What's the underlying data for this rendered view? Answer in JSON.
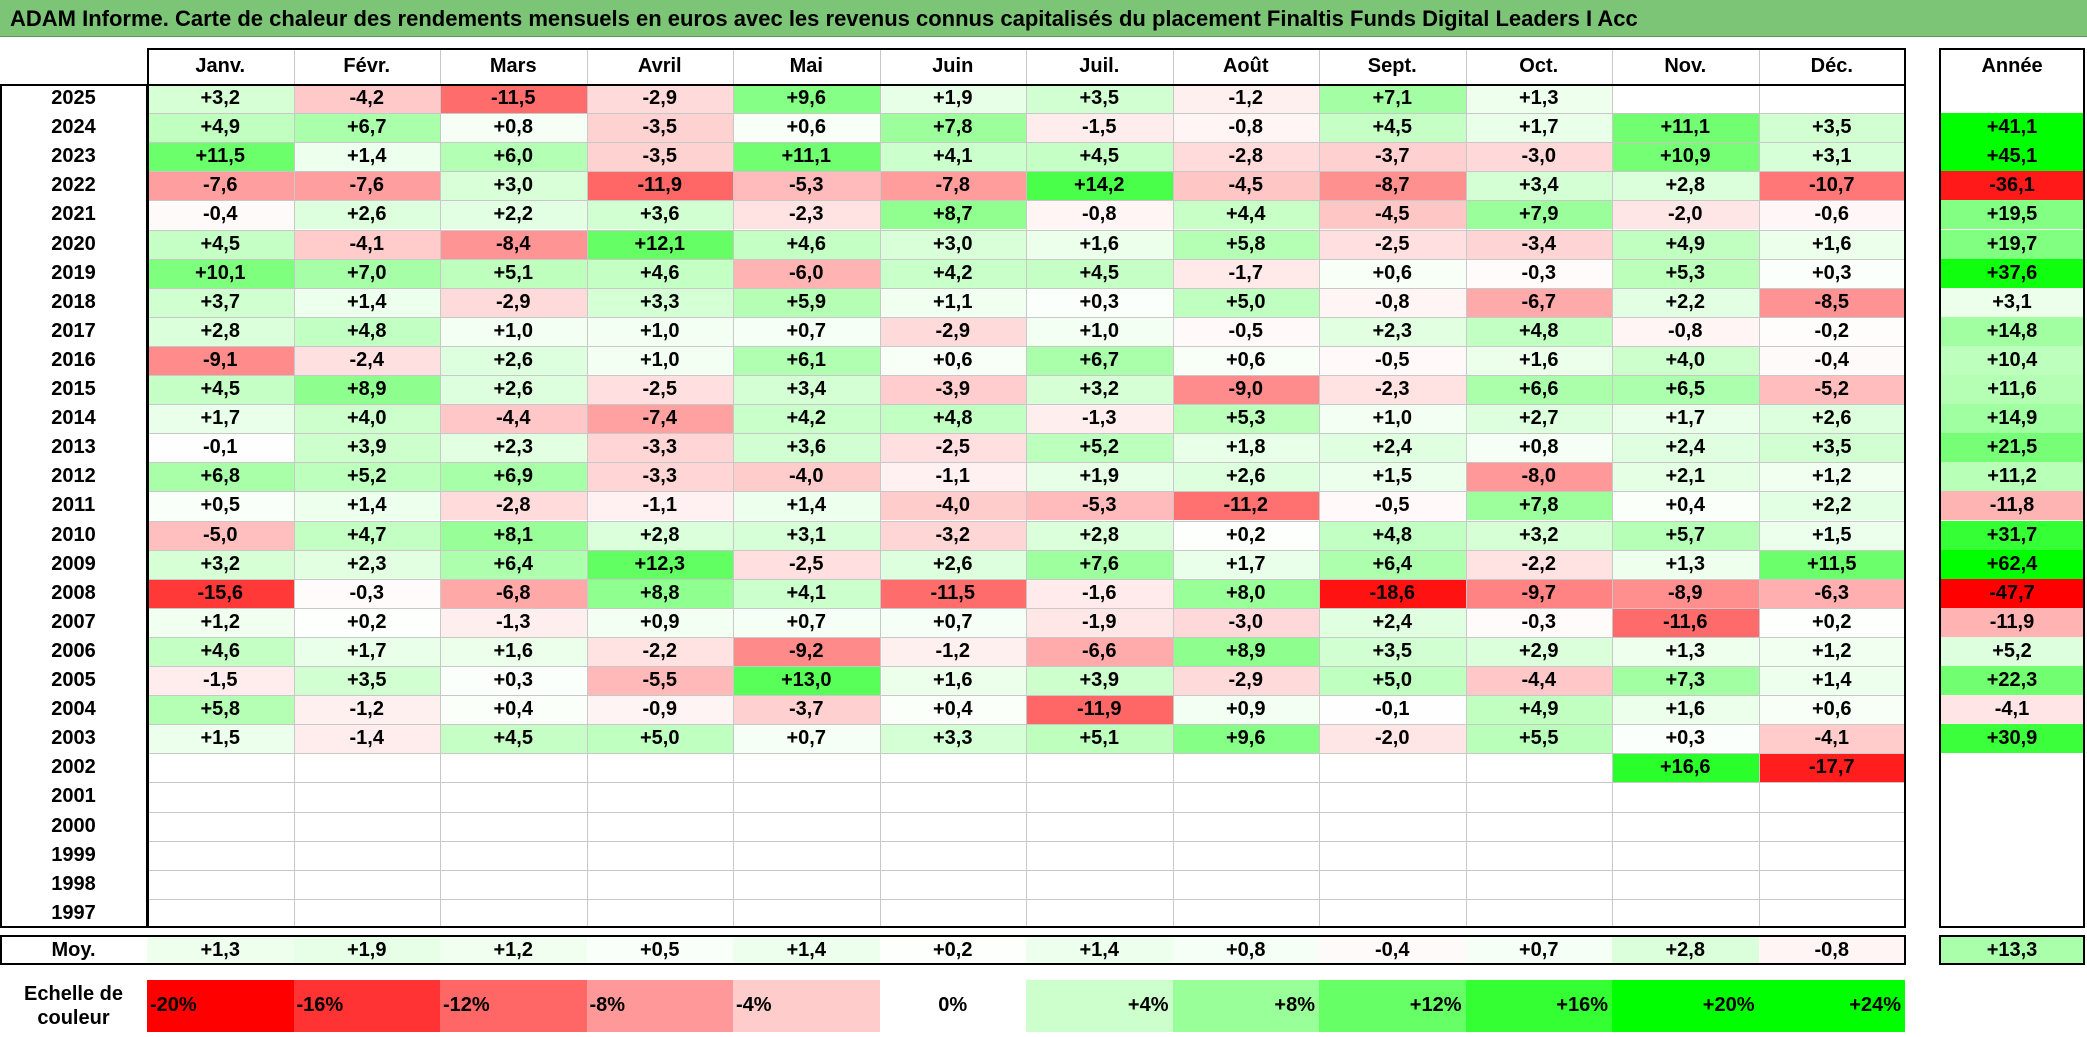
{
  "title": "ADAM Informe. Carte de chaleur des rendements mensuels en euros avec les revenus connus capitalisés du placement Finaltis Funds Digital Leaders I Acc",
  "months": [
    "Janv.",
    "Févr.",
    "Mars",
    "Avril",
    "Mai",
    "Juin",
    "Juil.",
    "Août",
    "Sept.",
    "Oct.",
    "Nov.",
    "Déc."
  ],
  "year_header": "Année",
  "avg_label": "Moy.",
  "scale_label": "Echelle de couleur",
  "colors": {
    "negative": "#ff0000",
    "neutral": "#ffffff",
    "positive": "#00ff00",
    "title_bg": "#7cc576"
  },
  "chart_data": {
    "type": "heatmap",
    "title": "ADAM Informe. Carte de chaleur des rendements mensuels en euros avec les revenus connus capitalisés du placement Finaltis Funds Digital Leaders I Acc",
    "columns": [
      "Janv.",
      "Févr.",
      "Mars",
      "Avril",
      "Mai",
      "Juin",
      "Juil.",
      "Août",
      "Sept.",
      "Oct.",
      "Nov.",
      "Déc.",
      "Année"
    ],
    "rows": [
      {
        "year": "2025",
        "values": [
          "+3,2",
          "-4,2",
          "-11,5",
          "-2,9",
          "+9,6",
          "+1,9",
          "+3,5",
          "-1,2",
          "+7,1",
          "+1,3",
          "",
          ""
        ],
        "annual": ""
      },
      {
        "year": "2024",
        "values": [
          "+4,9",
          "+6,7",
          "+0,8",
          "-3,5",
          "+0,6",
          "+7,8",
          "-1,5",
          "-0,8",
          "+4,5",
          "+1,7",
          "+11,1",
          "+3,5"
        ],
        "annual": "+41,1"
      },
      {
        "year": "2023",
        "values": [
          "+11,5",
          "+1,4",
          "+6,0",
          "-3,5",
          "+11,1",
          "+4,1",
          "+4,5",
          "-2,8",
          "-3,7",
          "-3,0",
          "+10,9",
          "+3,1"
        ],
        "annual": "+45,1"
      },
      {
        "year": "2022",
        "values": [
          "-7,6",
          "-7,6",
          "+3,0",
          "-11,9",
          "-5,3",
          "-7,8",
          "+14,2",
          "-4,5",
          "-8,7",
          "+3,4",
          "+2,8",
          "-10,7"
        ],
        "annual": "-36,1"
      },
      {
        "year": "2021",
        "values": [
          "-0,4",
          "+2,6",
          "+2,2",
          "+3,6",
          "-2,3",
          "+8,7",
          "-0,8",
          "+4,4",
          "-4,5",
          "+7,9",
          "-2,0",
          "-0,6"
        ],
        "annual": "+19,5"
      },
      {
        "year": "2020",
        "values": [
          "+4,5",
          "-4,1",
          "-8,4",
          "+12,1",
          "+4,6",
          "+3,0",
          "+1,6",
          "+5,8",
          "-2,5",
          "-3,4",
          "+4,9",
          "+1,6"
        ],
        "annual": "+19,7"
      },
      {
        "year": "2019",
        "values": [
          "+10,1",
          "+7,0",
          "+5,1",
          "+4,6",
          "-6,0",
          "+4,2",
          "+4,5",
          "-1,7",
          "+0,6",
          "-0,3",
          "+5,3",
          "+0,3"
        ],
        "annual": "+37,6"
      },
      {
        "year": "2018",
        "values": [
          "+3,7",
          "+1,4",
          "-2,9",
          "+3,3",
          "+5,9",
          "+1,1",
          "+0,3",
          "+5,0",
          "-0,8",
          "-6,7",
          "+2,2",
          "-8,5"
        ],
        "annual": "+3,1"
      },
      {
        "year": "2017",
        "values": [
          "+2,8",
          "+4,8",
          "+1,0",
          "+1,0",
          "+0,7",
          "-2,9",
          "+1,0",
          "-0,5",
          "+2,3",
          "+4,8",
          "-0,8",
          "-0,2"
        ],
        "annual": "+14,8"
      },
      {
        "year": "2016",
        "values": [
          "-9,1",
          "-2,4",
          "+2,6",
          "+1,0",
          "+6,1",
          "+0,6",
          "+6,7",
          "+0,6",
          "-0,5",
          "+1,6",
          "+4,0",
          "-0,4"
        ],
        "annual": "+10,4"
      },
      {
        "year": "2015",
        "values": [
          "+4,5",
          "+8,9",
          "+2,6",
          "-2,5",
          "+3,4",
          "-3,9",
          "+3,2",
          "-9,0",
          "-2,3",
          "+6,6",
          "+6,5",
          "-5,2"
        ],
        "annual": "+11,6"
      },
      {
        "year": "2014",
        "values": [
          "+1,7",
          "+4,0",
          "-4,4",
          "-7,4",
          "+4,2",
          "+4,8",
          "-1,3",
          "+5,3",
          "+1,0",
          "+2,7",
          "+1,7",
          "+2,6"
        ],
        "annual": "+14,9"
      },
      {
        "year": "2013",
        "values": [
          "-0,1",
          "+3,9",
          "+2,3",
          "-3,3",
          "+3,6",
          "-2,5",
          "+5,2",
          "+1,8",
          "+2,4",
          "+0,8",
          "+2,4",
          "+3,5"
        ],
        "annual": "+21,5"
      },
      {
        "year": "2012",
        "values": [
          "+6,8",
          "+5,2",
          "+6,9",
          "-3,3",
          "-4,0",
          "-1,1",
          "+1,9",
          "+2,6",
          "+1,5",
          "-8,0",
          "+2,1",
          "+1,2"
        ],
        "annual": "+11,2"
      },
      {
        "year": "2011",
        "values": [
          "+0,5",
          "+1,4",
          "-2,8",
          "-1,1",
          "+1,4",
          "-4,0",
          "-5,3",
          "-11,2",
          "-0,5",
          "+7,8",
          "+0,4",
          "+2,2"
        ],
        "annual": "-11,8"
      },
      {
        "year": "2010",
        "values": [
          "-5,0",
          "+4,7",
          "+8,1",
          "+2,8",
          "+3,1",
          "-3,2",
          "+2,8",
          "+0,2",
          "+4,8",
          "+3,2",
          "+5,7",
          "+1,5"
        ],
        "annual": "+31,7"
      },
      {
        "year": "2009",
        "values": [
          "+3,2",
          "+2,3",
          "+6,4",
          "+12,3",
          "-2,5",
          "+2,6",
          "+7,6",
          "+1,7",
          "+6,4",
          "-2,2",
          "+1,3",
          "+11,5"
        ],
        "annual": "+62,4"
      },
      {
        "year": "2008",
        "values": [
          "-15,6",
          "-0,3",
          "-6,8",
          "+8,8",
          "+4,1",
          "-11,5",
          "-1,6",
          "+8,0",
          "-18,6",
          "-9,7",
          "-8,9",
          "-6,3"
        ],
        "annual": "-47,7"
      },
      {
        "year": "2007",
        "values": [
          "+1,2",
          "+0,2",
          "-1,3",
          "+0,9",
          "+0,7",
          "+0,7",
          "-1,9",
          "-3,0",
          "+2,4",
          "-0,3",
          "-11,6",
          "+0,2"
        ],
        "annual": "-11,9"
      },
      {
        "year": "2006",
        "values": [
          "+4,6",
          "+1,7",
          "+1,6",
          "-2,2",
          "-9,2",
          "-1,2",
          "-6,6",
          "+8,9",
          "+3,5",
          "+2,9",
          "+1,3",
          "+1,2"
        ],
        "annual": "+5,2"
      },
      {
        "year": "2005",
        "values": [
          "-1,5",
          "+3,5",
          "+0,3",
          "-5,5",
          "+13,0",
          "+1,6",
          "+3,9",
          "-2,9",
          "+5,0",
          "-4,4",
          "+7,3",
          "+1,4"
        ],
        "annual": "+22,3"
      },
      {
        "year": "2004",
        "values": [
          "+5,8",
          "-1,2",
          "+0,4",
          "-0,9",
          "-3,7",
          "+0,4",
          "-11,9",
          "+0,9",
          "-0,1",
          "+4,9",
          "+1,6",
          "+0,6"
        ],
        "annual": "-4,1"
      },
      {
        "year": "2003",
        "values": [
          "+1,5",
          "-1,4",
          "+4,5",
          "+5,0",
          "+0,7",
          "+3,3",
          "+5,1",
          "+9,6",
          "-2,0",
          "+5,5",
          "+0,3",
          "-4,1"
        ],
        "annual": "+30,9"
      },
      {
        "year": "2002",
        "values": [
          "",
          "",
          "",
          "",
          "",
          "",
          "",
          "",
          "",
          "",
          "+16,6",
          "-17,7"
        ],
        "annual": ""
      },
      {
        "year": "2001",
        "values": [
          "",
          "",
          "",
          "",
          "",
          "",
          "",
          "",
          "",
          "",
          "",
          ""
        ],
        "annual": ""
      },
      {
        "year": "2000",
        "values": [
          "",
          "",
          "",
          "",
          "",
          "",
          "",
          "",
          "",
          "",
          "",
          ""
        ],
        "annual": ""
      },
      {
        "year": "1999",
        "values": [
          "",
          "",
          "",
          "",
          "",
          "",
          "",
          "",
          "",
          "",
          "",
          ""
        ],
        "annual": ""
      },
      {
        "year": "1998",
        "values": [
          "",
          "",
          "",
          "",
          "",
          "",
          "",
          "",
          "",
          "",
          "",
          ""
        ],
        "annual": ""
      },
      {
        "year": "1997",
        "values": [
          "",
          "",
          "",
          "",
          "",
          "",
          "",
          "",
          "",
          "",
          "",
          ""
        ],
        "annual": ""
      }
    ],
    "average": {
      "label": "Moy.",
      "values": [
        "+1,3",
        "+1,9",
        "+1,2",
        "+0,5",
        "+1,4",
        "+0,2",
        "+1,4",
        "+0,8",
        "-0,4",
        "+0,7",
        "+2,8",
        "-0,8"
      ],
      "annual": "+13,3"
    },
    "scale": [
      "-20%",
      "-16%",
      "-12%",
      "-8%",
      "-4%",
      "0%",
      "+4%",
      "+8%",
      "+12%",
      "+16%",
      "+20%",
      "+24%"
    ],
    "scale_values": [
      -20,
      -16,
      -12,
      -8,
      -4,
      0,
      4,
      8,
      12,
      16,
      20,
      24
    ]
  }
}
